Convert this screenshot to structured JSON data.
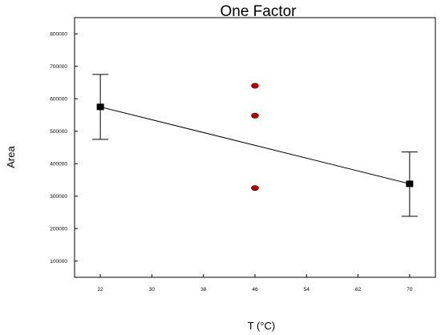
{
  "chart_data": {
    "type": "scatter",
    "title": "One Factor",
    "xlabel": "T (°C)",
    "ylabel": "Area",
    "xlim": [
      18,
      74
    ],
    "ylim": [
      50000,
      850000
    ],
    "x_ticks": [
      22,
      30,
      38,
      46,
      54,
      62,
      70
    ],
    "y_ticks": [
      100000,
      200000,
      300000,
      400000,
      500000,
      600000,
      700000,
      800000
    ],
    "grid": false,
    "legend": "none",
    "series": [
      {
        "type": "line",
        "color": "#000000",
        "points": [
          {
            "x": 22,
            "y": 575000
          },
          {
            "x": 70,
            "y": 338000
          }
        ]
      },
      {
        "type": "errorbar",
        "color": "#000000",
        "points": [
          {
            "x": 22,
            "y": 575000,
            "low": 475000,
            "high": 675000
          },
          {
            "x": 70,
            "y": 338000,
            "low": 238000,
            "high": 436000
          }
        ]
      },
      {
        "type": "scatter",
        "color": "#b00000",
        "points": [
          {
            "x": 46,
            "y": 640000
          },
          {
            "x": 46,
            "y": 548000
          },
          {
            "x": 46,
            "y": 325000
          }
        ]
      }
    ]
  }
}
